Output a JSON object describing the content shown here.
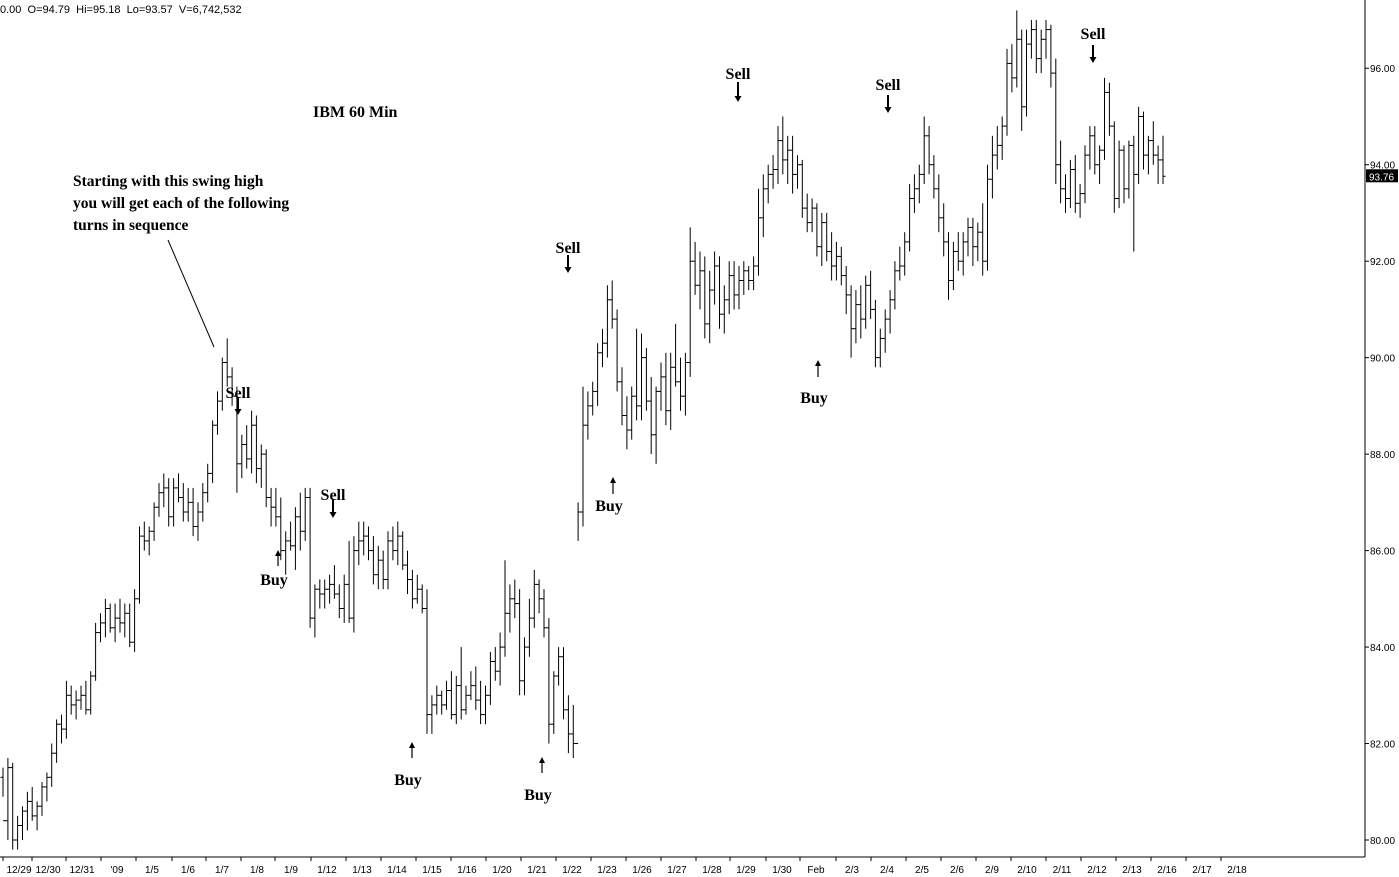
{
  "header": {
    "text": "0.00  O=94.79  Hi=95.18  Lo=93.57  V=6,742,532"
  },
  "chart_data": {
    "type": "ohlc",
    "title": "IBM 60 Min",
    "grid": false,
    "ylim": [
      79.8,
      97.2
    ],
    "y_ticks": [
      "80.00",
      "82.00",
      "84.00",
      "86.00",
      "88.00",
      "90.00",
      "92.00",
      "94.00",
      "96.00"
    ],
    "last_price": "93.76",
    "x_ticks": [
      "12/29",
      "12/30",
      "12/31",
      "'09",
      "1/5",
      "1/6",
      "1/7",
      "1/8",
      "1/9",
      "1/12",
      "1/13",
      "1/14",
      "1/15",
      "1/16",
      "1/20",
      "1/21",
      "1/22",
      "1/23",
      "1/26",
      "1/27",
      "1/28",
      "1/29",
      "1/30",
      "Feb",
      "2/3",
      "2/4",
      "2/5",
      "2/6",
      "2/9",
      "2/10",
      "2/11",
      "2/12",
      "2/13",
      "2/16",
      "2/17",
      "2/18"
    ],
    "bars": [
      [
        81.3,
        81.5,
        80.9,
        80.4
      ],
      [
        80.4,
        81.7,
        80.0,
        81.5
      ],
      [
        81.5,
        81.6,
        79.8,
        80.0
      ],
      [
        80.0,
        80.5,
        79.8,
        80.3
      ],
      [
        80.3,
        80.7,
        80.0,
        80.6
      ],
      [
        80.6,
        81.0,
        80.2,
        80.8
      ],
      [
        80.8,
        81.1,
        80.4,
        80.5
      ],
      [
        80.5,
        80.8,
        80.2,
        80.7
      ],
      [
        80.7,
        81.2,
        80.5,
        81.1
      ],
      [
        81.1,
        81.4,
        80.8,
        81.3
      ],
      [
        81.3,
        82.0,
        81.1,
        81.8
      ],
      [
        81.8,
        82.5,
        81.6,
        82.4
      ],
      [
        82.4,
        82.6,
        82.0,
        82.3
      ],
      [
        82.3,
        83.3,
        82.1,
        83.0
      ],
      [
        83.0,
        83.2,
        82.6,
        82.8
      ],
      [
        82.8,
        83.1,
        82.5,
        82.9
      ],
      [
        82.9,
        83.2,
        82.7,
        83.0
      ],
      [
        83.0,
        83.3,
        82.6,
        82.7
      ],
      [
        82.7,
        83.5,
        82.6,
        83.4
      ],
      [
        83.4,
        84.5,
        83.3,
        84.3
      ],
      [
        84.3,
        84.7,
        84.1,
        84.5
      ],
      [
        84.5,
        85.0,
        84.2,
        84.8
      ],
      [
        84.8,
        84.9,
        84.3,
        84.4
      ],
      [
        84.4,
        84.9,
        84.1,
        84.6
      ],
      [
        84.6,
        85.0,
        84.3,
        84.5
      ],
      [
        84.5,
        84.9,
        84.2,
        84.7
      ],
      [
        84.7,
        84.9,
        84.0,
        84.1
      ],
      [
        84.1,
        85.2,
        83.9,
        85.0
      ],
      [
        85.0,
        86.5,
        84.9,
        86.3
      ],
      [
        86.3,
        86.6,
        86.0,
        86.2
      ],
      [
        86.2,
        86.5,
        85.9,
        86.4
      ],
      [
        86.4,
        87.0,
        86.2,
        86.9
      ],
      [
        86.9,
        87.4,
        86.7,
        87.2
      ],
      [
        87.2,
        87.6,
        86.9,
        87.3
      ],
      [
        87.3,
        87.5,
        86.5,
        86.7
      ],
      [
        86.7,
        87.5,
        86.5,
        87.3
      ],
      [
        87.3,
        87.6,
        87.0,
        87.1
      ],
      [
        87.1,
        87.4,
        86.6,
        86.8
      ],
      [
        86.8,
        87.3,
        86.6,
        87.0
      ],
      [
        87.0,
        87.3,
        86.3,
        86.5
      ],
      [
        86.5,
        87.0,
        86.2,
        86.8
      ],
      [
        86.8,
        87.4,
        86.6,
        87.2
      ],
      [
        87.2,
        87.8,
        87.0,
        87.6
      ],
      [
        87.6,
        88.7,
        87.4,
        88.6
      ],
      [
        88.6,
        89.3,
        88.4,
        89.1
      ],
      [
        89.1,
        90.0,
        88.9,
        89.9
      ],
      [
        89.9,
        90.4,
        89.4,
        89.6
      ],
      [
        89.6,
        89.8,
        89.0,
        89.2
      ],
      [
        89.2,
        89.4,
        87.2,
        87.8
      ],
      [
        87.8,
        88.4,
        87.5,
        88.2
      ],
      [
        88.2,
        88.6,
        87.7,
        87.9
      ],
      [
        87.9,
        88.9,
        87.6,
        88.6
      ],
      [
        88.6,
        88.8,
        87.4,
        87.7
      ],
      [
        87.7,
        88.2,
        87.3,
        88.0
      ],
      [
        88.0,
        88.1,
        86.9,
        87.1
      ],
      [
        87.1,
        87.3,
        86.5,
        86.9
      ],
      [
        86.9,
        87.3,
        86.5,
        86.7
      ],
      [
        86.7,
        87.1,
        85.8,
        86.0
      ],
      [
        86.0,
        86.4,
        85.5,
        86.2
      ],
      [
        86.2,
        86.6,
        86.0,
        86.1
      ],
      [
        86.1,
        86.9,
        85.6,
        86.7
      ],
      [
        86.7,
        87.2,
        86.0,
        86.4
      ],
      [
        86.4,
        87.3,
        86.2,
        87.1
      ],
      [
        87.1,
        87.3,
        84.4,
        84.6
      ],
      [
        84.6,
        85.3,
        84.2,
        85.2
      ],
      [
        85.2,
        85.4,
        84.8,
        85.1
      ],
      [
        85.1,
        85.4,
        84.8,
        85.2
      ],
      [
        85.2,
        85.5,
        84.9,
        85.3
      ],
      [
        85.3,
        85.7,
        85.0,
        85.1
      ],
      [
        85.1,
        85.3,
        84.6,
        84.8
      ],
      [
        84.8,
        85.5,
        84.5,
        85.3
      ],
      [
        85.3,
        86.2,
        84.5,
        84.6
      ],
      [
        84.6,
        86.3,
        84.3,
        86.0
      ],
      [
        86.0,
        86.6,
        85.7,
        86.2
      ],
      [
        86.2,
        86.6,
        85.9,
        86.3
      ],
      [
        86.3,
        86.5,
        85.8,
        86.0
      ],
      [
        86.0,
        86.3,
        85.3,
        85.5
      ],
      [
        85.5,
        86.1,
        85.2,
        85.8
      ],
      [
        85.8,
        86.0,
        85.2,
        85.4
      ],
      [
        85.4,
        86.4,
        85.2,
        86.2
      ],
      [
        86.2,
        86.5,
        85.8,
        86.0
      ],
      [
        86.0,
        86.6,
        85.7,
        86.3
      ],
      [
        86.3,
        86.4,
        85.6,
        85.7
      ],
      [
        85.7,
        86.0,
        85.1,
        85.4
      ],
      [
        85.4,
        85.6,
        84.8,
        85.0
      ],
      [
        85.0,
        85.5,
        84.9,
        85.2
      ],
      [
        85.2,
        85.3,
        84.7,
        84.8
      ],
      [
        84.8,
        85.2,
        82.2,
        82.6
      ],
      [
        82.6,
        83.0,
        82.2,
        82.8
      ],
      [
        82.8,
        83.2,
        82.6,
        83.0
      ],
      [
        83.0,
        83.1,
        82.6,
        82.8
      ],
      [
        82.8,
        83.3,
        82.7,
        83.1
      ],
      [
        83.1,
        83.5,
        82.5,
        82.6
      ],
      [
        82.6,
        83.4,
        82.4,
        83.2
      ],
      [
        83.2,
        84.0,
        82.5,
        82.7
      ],
      [
        82.7,
        83.2,
        82.6,
        83.0
      ],
      [
        83.0,
        83.5,
        82.9,
        83.2
      ],
      [
        83.2,
        83.6,
        82.7,
        82.9
      ],
      [
        82.9,
        83.3,
        82.4,
        82.6
      ],
      [
        82.6,
        83.2,
        82.4,
        83.0
      ],
      [
        83.0,
        83.9,
        82.8,
        83.7
      ],
      [
        83.7,
        84.0,
        83.3,
        83.5
      ],
      [
        83.5,
        84.3,
        83.2,
        84.0
      ],
      [
        84.0,
        85.8,
        83.8,
        84.7
      ],
      [
        84.7,
        85.3,
        84.3,
        85.0
      ],
      [
        85.0,
        85.4,
        84.6,
        84.9
      ],
      [
        84.9,
        85.2,
        83.0,
        83.3
      ],
      [
        83.3,
        84.2,
        83.0,
        84.0
      ],
      [
        84.0,
        85.0,
        83.8,
        84.6
      ],
      [
        84.6,
        85.6,
        84.4,
        85.3
      ],
      [
        85.3,
        85.4,
        84.7,
        85.0
      ],
      [
        85.0,
        85.2,
        84.2,
        84.4
      ],
      [
        84.4,
        84.6,
        82.0,
        82.4
      ],
      [
        82.4,
        83.5,
        82.2,
        83.4
      ],
      [
        83.4,
        84.0,
        83.2,
        83.8
      ],
      [
        83.8,
        84.0,
        82.5,
        82.7
      ],
      [
        82.7,
        83.0,
        81.8,
        82.2
      ],
      [
        82.2,
        82.8,
        81.7,
        82.0
      ],
      [
        82.0,
        87.0,
        86.2,
        86.8
      ],
      [
        86.8,
        89.4,
        86.5,
        88.6
      ],
      [
        88.6,
        89.3,
        88.3,
        89.0
      ],
      [
        89.0,
        89.5,
        88.8,
        89.3
      ],
      [
        89.3,
        90.3,
        89.0,
        90.1
      ],
      [
        90.1,
        90.6,
        89.8,
        90.3
      ],
      [
        90.3,
        91.5,
        90.0,
        91.2
      ],
      [
        91.2,
        91.6,
        90.6,
        90.8
      ],
      [
        90.8,
        91.0,
        89.3,
        89.5
      ],
      [
        89.5,
        89.8,
        88.6,
        88.8
      ],
      [
        88.8,
        89.2,
        88.1,
        88.5
      ],
      [
        88.5,
        89.4,
        88.3,
        89.2
      ],
      [
        89.2,
        90.6,
        88.7,
        89.0
      ],
      [
        89.0,
        90.5,
        88.7,
        90.0
      ],
      [
        90.0,
        90.2,
        88.9,
        89.1
      ],
      [
        89.1,
        89.6,
        88.0,
        88.4
      ],
      [
        88.4,
        89.4,
        87.8,
        89.3
      ],
      [
        89.3,
        89.9,
        88.9,
        89.6
      ],
      [
        89.6,
        90.1,
        88.6,
        88.9
      ],
      [
        88.9,
        90.1,
        88.5,
        89.8
      ],
      [
        89.8,
        90.7,
        89.4,
        89.5
      ],
      [
        89.5,
        90.0,
        88.9,
        89.2
      ],
      [
        89.2,
        90.1,
        88.8,
        89.9
      ],
      [
        89.9,
        92.7,
        89.6,
        92.0
      ],
      [
        92.0,
        92.4,
        91.3,
        91.5
      ],
      [
        91.5,
        92.2,
        91.0,
        91.8
      ],
      [
        91.8,
        92.1,
        90.4,
        90.7
      ],
      [
        90.7,
        91.8,
        90.3,
        91.4
      ],
      [
        91.4,
        92.2,
        91.1,
        91.9
      ],
      [
        91.9,
        92.1,
        90.6,
        90.9
      ],
      [
        90.9,
        91.5,
        90.5,
        91.2
      ],
      [
        91.2,
        92.0,
        90.9,
        91.7
      ],
      [
        91.7,
        92.0,
        91.0,
        91.3
      ],
      [
        91.3,
        91.9,
        91.0,
        91.6
      ],
      [
        91.6,
        92.0,
        91.3,
        91.8
      ],
      [
        91.8,
        91.9,
        91.4,
        91.6
      ],
      [
        91.6,
        92.1,
        91.4,
        91.9
      ],
      [
        91.9,
        93.5,
        91.7,
        92.9
      ],
      [
        92.9,
        93.8,
        92.5,
        93.5
      ],
      [
        93.5,
        94.0,
        93.2,
        93.8
      ],
      [
        93.8,
        94.2,
        93.5,
        93.9
      ],
      [
        93.9,
        94.8,
        93.6,
        94.5
      ],
      [
        94.5,
        95.0,
        93.8,
        94.1
      ],
      [
        94.1,
        94.6,
        93.6,
        94.3
      ],
      [
        94.3,
        94.6,
        93.4,
        93.8
      ],
      [
        93.8,
        94.2,
        93.5,
        94.0
      ],
      [
        94.0,
        94.1,
        92.9,
        93.1
      ],
      [
        93.1,
        93.4,
        92.6,
        92.8
      ],
      [
        92.8,
        93.3,
        92.6,
        93.1
      ],
      [
        93.1,
        93.2,
        92.1,
        92.3
      ],
      [
        92.3,
        93.0,
        91.9,
        92.8
      ],
      [
        92.8,
        93.0,
        92.0,
        92.2
      ],
      [
        92.2,
        92.6,
        91.6,
        91.9
      ],
      [
        91.9,
        92.4,
        91.6,
        92.1
      ],
      [
        92.1,
        92.3,
        91.5,
        91.7
      ],
      [
        91.7,
        91.9,
        90.9,
        91.3
      ],
      [
        91.3,
        91.5,
        90.0,
        90.6
      ],
      [
        90.6,
        91.4,
        90.3,
        91.1
      ],
      [
        91.1,
        91.5,
        90.4,
        90.8
      ],
      [
        90.8,
        91.7,
        90.6,
        91.5
      ],
      [
        91.5,
        91.8,
        90.8,
        91.0
      ],
      [
        91.0,
        91.2,
        89.8,
        90.0
      ],
      [
        90.0,
        90.6,
        89.8,
        90.4
      ],
      [
        90.4,
        91.0,
        90.1,
        90.8
      ],
      [
        90.8,
        91.4,
        90.5,
        91.2
      ],
      [
        91.2,
        92.0,
        91.0,
        91.8
      ],
      [
        91.8,
        92.3,
        91.6,
        91.9
      ],
      [
        91.9,
        92.6,
        91.7,
        92.4
      ],
      [
        92.4,
        93.6,
        92.2,
        93.3
      ],
      [
        93.3,
        93.8,
        93.0,
        93.5
      ],
      [
        93.5,
        94.0,
        93.2,
        93.8
      ],
      [
        93.8,
        95.0,
        93.6,
        94.6
      ],
      [
        94.6,
        94.8,
        93.8,
        94.0
      ],
      [
        94.0,
        94.2,
        93.3,
        93.5
      ],
      [
        93.5,
        93.8,
        92.6,
        92.9
      ],
      [
        92.9,
        93.2,
        92.1,
        92.4
      ],
      [
        92.4,
        92.6,
        91.2,
        91.6
      ],
      [
        91.6,
        92.4,
        91.4,
        92.2
      ],
      [
        92.2,
        92.6,
        91.8,
        92.0
      ],
      [
        92.0,
        92.6,
        91.7,
        92.4
      ],
      [
        92.4,
        92.9,
        92.1,
        92.7
      ],
      [
        92.7,
        92.9,
        91.9,
        92.3
      ],
      [
        92.3,
        92.8,
        92.0,
        92.6
      ],
      [
        92.6,
        93.2,
        91.7,
        92.0
      ],
      [
        92.0,
        94.0,
        91.8,
        93.7
      ],
      [
        93.7,
        94.6,
        93.3,
        94.2
      ],
      [
        94.2,
        94.8,
        93.9,
        94.4
      ],
      [
        94.4,
        95.0,
        94.1,
        94.8
      ],
      [
        94.8,
        96.4,
        94.6,
        96.1
      ],
      [
        96.1,
        96.5,
        95.5,
        95.8
      ],
      [
        95.8,
        97.2,
        95.6,
        96.6
      ],
      [
        96.6,
        96.8,
        94.7,
        95.2
      ],
      [
        95.2,
        96.8,
        95.0,
        96.5
      ],
      [
        96.5,
        97.0,
        96.2,
        96.8
      ],
      [
        96.8,
        97.0,
        95.9,
        96.2
      ],
      [
        96.2,
        96.8,
        95.9,
        96.6
      ],
      [
        96.6,
        97.0,
        96.2,
        96.8
      ],
      [
        96.8,
        96.9,
        95.6,
        95.9
      ],
      [
        95.9,
        96.2,
        93.6,
        94.0
      ],
      [
        94.0,
        94.5,
        93.2,
        93.5
      ],
      [
        93.5,
        93.8,
        93.0,
        93.3
      ],
      [
        93.3,
        94.1,
        93.1,
        93.9
      ],
      [
        93.9,
        94.2,
        93.0,
        93.2
      ],
      [
        93.2,
        93.6,
        92.9,
        93.4
      ],
      [
        93.4,
        94.4,
        93.2,
        94.2
      ],
      [
        94.2,
        94.8,
        93.9,
        94.6
      ],
      [
        94.6,
        94.8,
        93.8,
        94.0
      ],
      [
        94.0,
        94.4,
        93.6,
        94.3
      ],
      [
        94.3,
        95.8,
        94.1,
        95.5
      ],
      [
        95.5,
        95.7,
        94.6,
        94.8
      ],
      [
        94.8,
        94.9,
        93.0,
        93.3
      ],
      [
        93.3,
        94.5,
        93.1,
        94.3
      ],
      [
        94.3,
        94.4,
        93.2,
        93.5
      ],
      [
        93.5,
        94.5,
        93.3,
        94.4
      ],
      [
        94.4,
        94.6,
        92.2,
        93.8
      ],
      [
        93.8,
        95.2,
        93.6,
        95.0
      ],
      [
        95.0,
        95.1,
        93.9,
        94.2
      ],
      [
        94.2,
        94.6,
        93.8,
        94.5
      ],
      [
        94.5,
        94.9,
        94.0,
        94.2
      ],
      [
        94.2,
        94.4,
        93.6,
        94.1
      ],
      [
        94.1,
        94.6,
        93.6,
        93.76
      ]
    ],
    "annotations": [
      {
        "text": "Starting with this swing high\nyou will get each of the following\nturns in sequence"
      },
      {
        "text": "Sell"
      },
      {
        "text": "Buy"
      },
      {
        "text": "Sell"
      },
      {
        "text": "Buy"
      },
      {
        "text": "Buy"
      },
      {
        "text": "Sell"
      },
      {
        "text": "Buy"
      },
      {
        "text": "Sell"
      },
      {
        "text": "Buy"
      },
      {
        "text": "Sell"
      },
      {
        "text": "Sell"
      }
    ]
  }
}
